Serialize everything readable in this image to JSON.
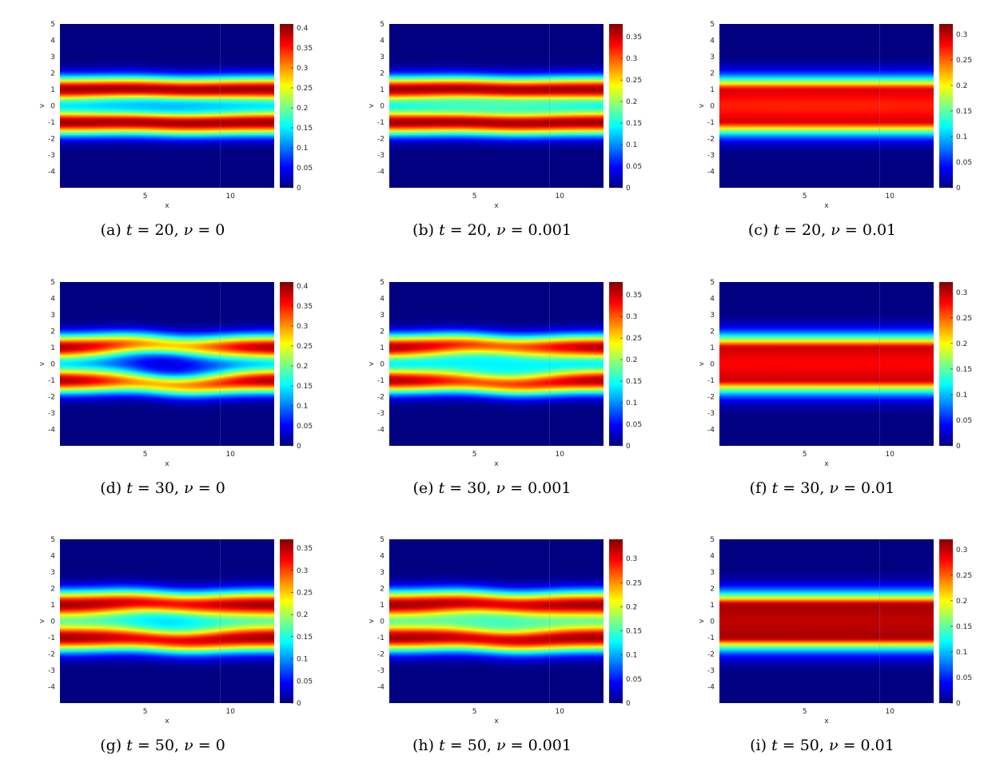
{
  "figure": {
    "colormap": "jet",
    "axes": {
      "xlabel": "x",
      "ylabel": "v",
      "xlim": [
        0,
        12.566
      ],
      "ylim": [
        -5,
        5
      ],
      "xticks": [
        5,
        10
      ],
      "yticks": [
        -4,
        -3,
        -2,
        -1,
        0,
        1,
        2,
        3,
        4,
        5
      ]
    },
    "colors": {
      "background": "#00008f",
      "peak": "#800000"
    }
  },
  "chart_data": [
    {
      "type": "heatmap",
      "caption": {
        "label": "(a)",
        "t": "20",
        "nu": "0"
      },
      "colorbar": {
        "max": 0.41,
        "ticks": [
          "0",
          "0.05",
          "0.1",
          "0.15",
          "0.2",
          "0.25",
          "0.3",
          "0.35",
          "0.4"
        ]
      },
      "field": {
        "band_center": 1.0,
        "band_width": 0.55,
        "band_peak": 0.4,
        "core_value": 0.13,
        "core_width": 0.6,
        "core_rx": 4.0,
        "core_ry": 0.35,
        "wave_amp": 0.12
      }
    },
    {
      "type": "heatmap",
      "caption": {
        "label": "(b)",
        "t": "20",
        "nu": "0.001"
      },
      "colorbar": {
        "max": 0.38,
        "ticks": [
          "0",
          "0.05",
          "0.1",
          "0.15",
          "0.2",
          "0.25",
          "0.3",
          "0.35"
        ]
      },
      "field": {
        "band_center": 1.0,
        "band_width": 0.55,
        "band_peak": 0.37,
        "core_value": 0.17,
        "core_width": 0.6,
        "core_rx": 4.0,
        "core_ry": 0.35,
        "wave_amp": 0.12
      }
    },
    {
      "type": "heatmap",
      "caption": {
        "label": "(c)",
        "t": "20",
        "nu": "0.01"
      },
      "colorbar": {
        "max": 0.32,
        "ticks": [
          "0",
          "0.05",
          "0.1",
          "0.15",
          "0.2",
          "0.25",
          "0.3"
        ]
      },
      "field": {
        "band_center": 0.65,
        "band_width": 0.75,
        "band_peak": 0.3,
        "core_value": 0.27,
        "core_width": 0.9,
        "core_rx": 20,
        "core_ry": 0.6,
        "wave_amp": 0.0
      }
    },
    {
      "type": "heatmap",
      "caption": {
        "label": "(d)",
        "t": "30",
        "nu": "0"
      },
      "colorbar": {
        "max": 0.41,
        "ticks": [
          "0",
          "0.05",
          "0.1",
          "0.15",
          "0.2",
          "0.25",
          "0.3",
          "0.35",
          "0.4"
        ]
      },
      "field": {
        "band_center": 1.0,
        "band_width": 0.55,
        "band_peak": 0.4,
        "core_value": 0.04,
        "core_width": 0.5,
        "core_rx": 2.6,
        "core_ry": 0.75,
        "wave_amp": 0.35
      }
    },
    {
      "type": "heatmap",
      "caption": {
        "label": "(e)",
        "t": "30",
        "nu": "0.001"
      },
      "colorbar": {
        "max": 0.38,
        "ticks": [
          "0",
          "0.05",
          "0.1",
          "0.15",
          "0.2",
          "0.25",
          "0.3",
          "0.35"
        ]
      },
      "field": {
        "band_center": 1.0,
        "band_width": 0.55,
        "band_peak": 0.37,
        "core_value": 0.14,
        "core_width": 0.6,
        "core_rx": 2.8,
        "core_ry": 0.7,
        "wave_amp": 0.3
      }
    },
    {
      "type": "heatmap",
      "caption": {
        "label": "(f)",
        "t": "30",
        "nu": "0.01"
      },
      "colorbar": {
        "max": 0.32,
        "ticks": [
          "0",
          "0.05",
          "0.1",
          "0.15",
          "0.2",
          "0.25",
          "0.3"
        ]
      },
      "field": {
        "band_center": 0.6,
        "band_width": 0.8,
        "band_peak": 0.3,
        "core_value": 0.28,
        "core_width": 0.9,
        "core_rx": 20,
        "core_ry": 0.6,
        "wave_amp": 0.0
      }
    },
    {
      "type": "heatmap",
      "caption": {
        "label": "(g)",
        "t": "50",
        "nu": "0"
      },
      "colorbar": {
        "max": 0.37,
        "ticks": [
          "0",
          "0.05",
          "0.1",
          "0.15",
          "0.2",
          "0.25",
          "0.3",
          "0.35"
        ]
      },
      "field": {
        "band_center": 1.0,
        "band_width": 0.6,
        "band_peak": 0.36,
        "core_value": 0.13,
        "core_width": 0.6,
        "core_rx": 2.4,
        "core_ry": 0.55,
        "wave_amp": 0.28
      }
    },
    {
      "type": "heatmap",
      "caption": {
        "label": "(h)",
        "t": "50",
        "nu": "0.001"
      },
      "colorbar": {
        "max": 0.34,
        "ticks": [
          "0",
          "0.05",
          "0.1",
          "0.15",
          "0.2",
          "0.25",
          "0.3"
        ]
      },
      "field": {
        "band_center": 1.0,
        "band_width": 0.6,
        "band_peak": 0.33,
        "core_value": 0.15,
        "core_width": 0.6,
        "core_rx": 2.2,
        "core_ry": 0.5,
        "wave_amp": 0.28
      }
    },
    {
      "type": "heatmap",
      "caption": {
        "label": "(i)",
        "t": "50",
        "nu": "0.01"
      },
      "colorbar": {
        "max": 0.32,
        "ticks": [
          "0",
          "0.05",
          "0.1",
          "0.15",
          "0.2",
          "0.25",
          "0.3"
        ]
      },
      "field": {
        "band_center": 0.45,
        "band_width": 0.85,
        "band_peak": 0.31,
        "core_value": 0.3,
        "core_width": 1.0,
        "core_rx": 20,
        "core_ry": 0.6,
        "wave_amp": 0.0
      }
    }
  ]
}
